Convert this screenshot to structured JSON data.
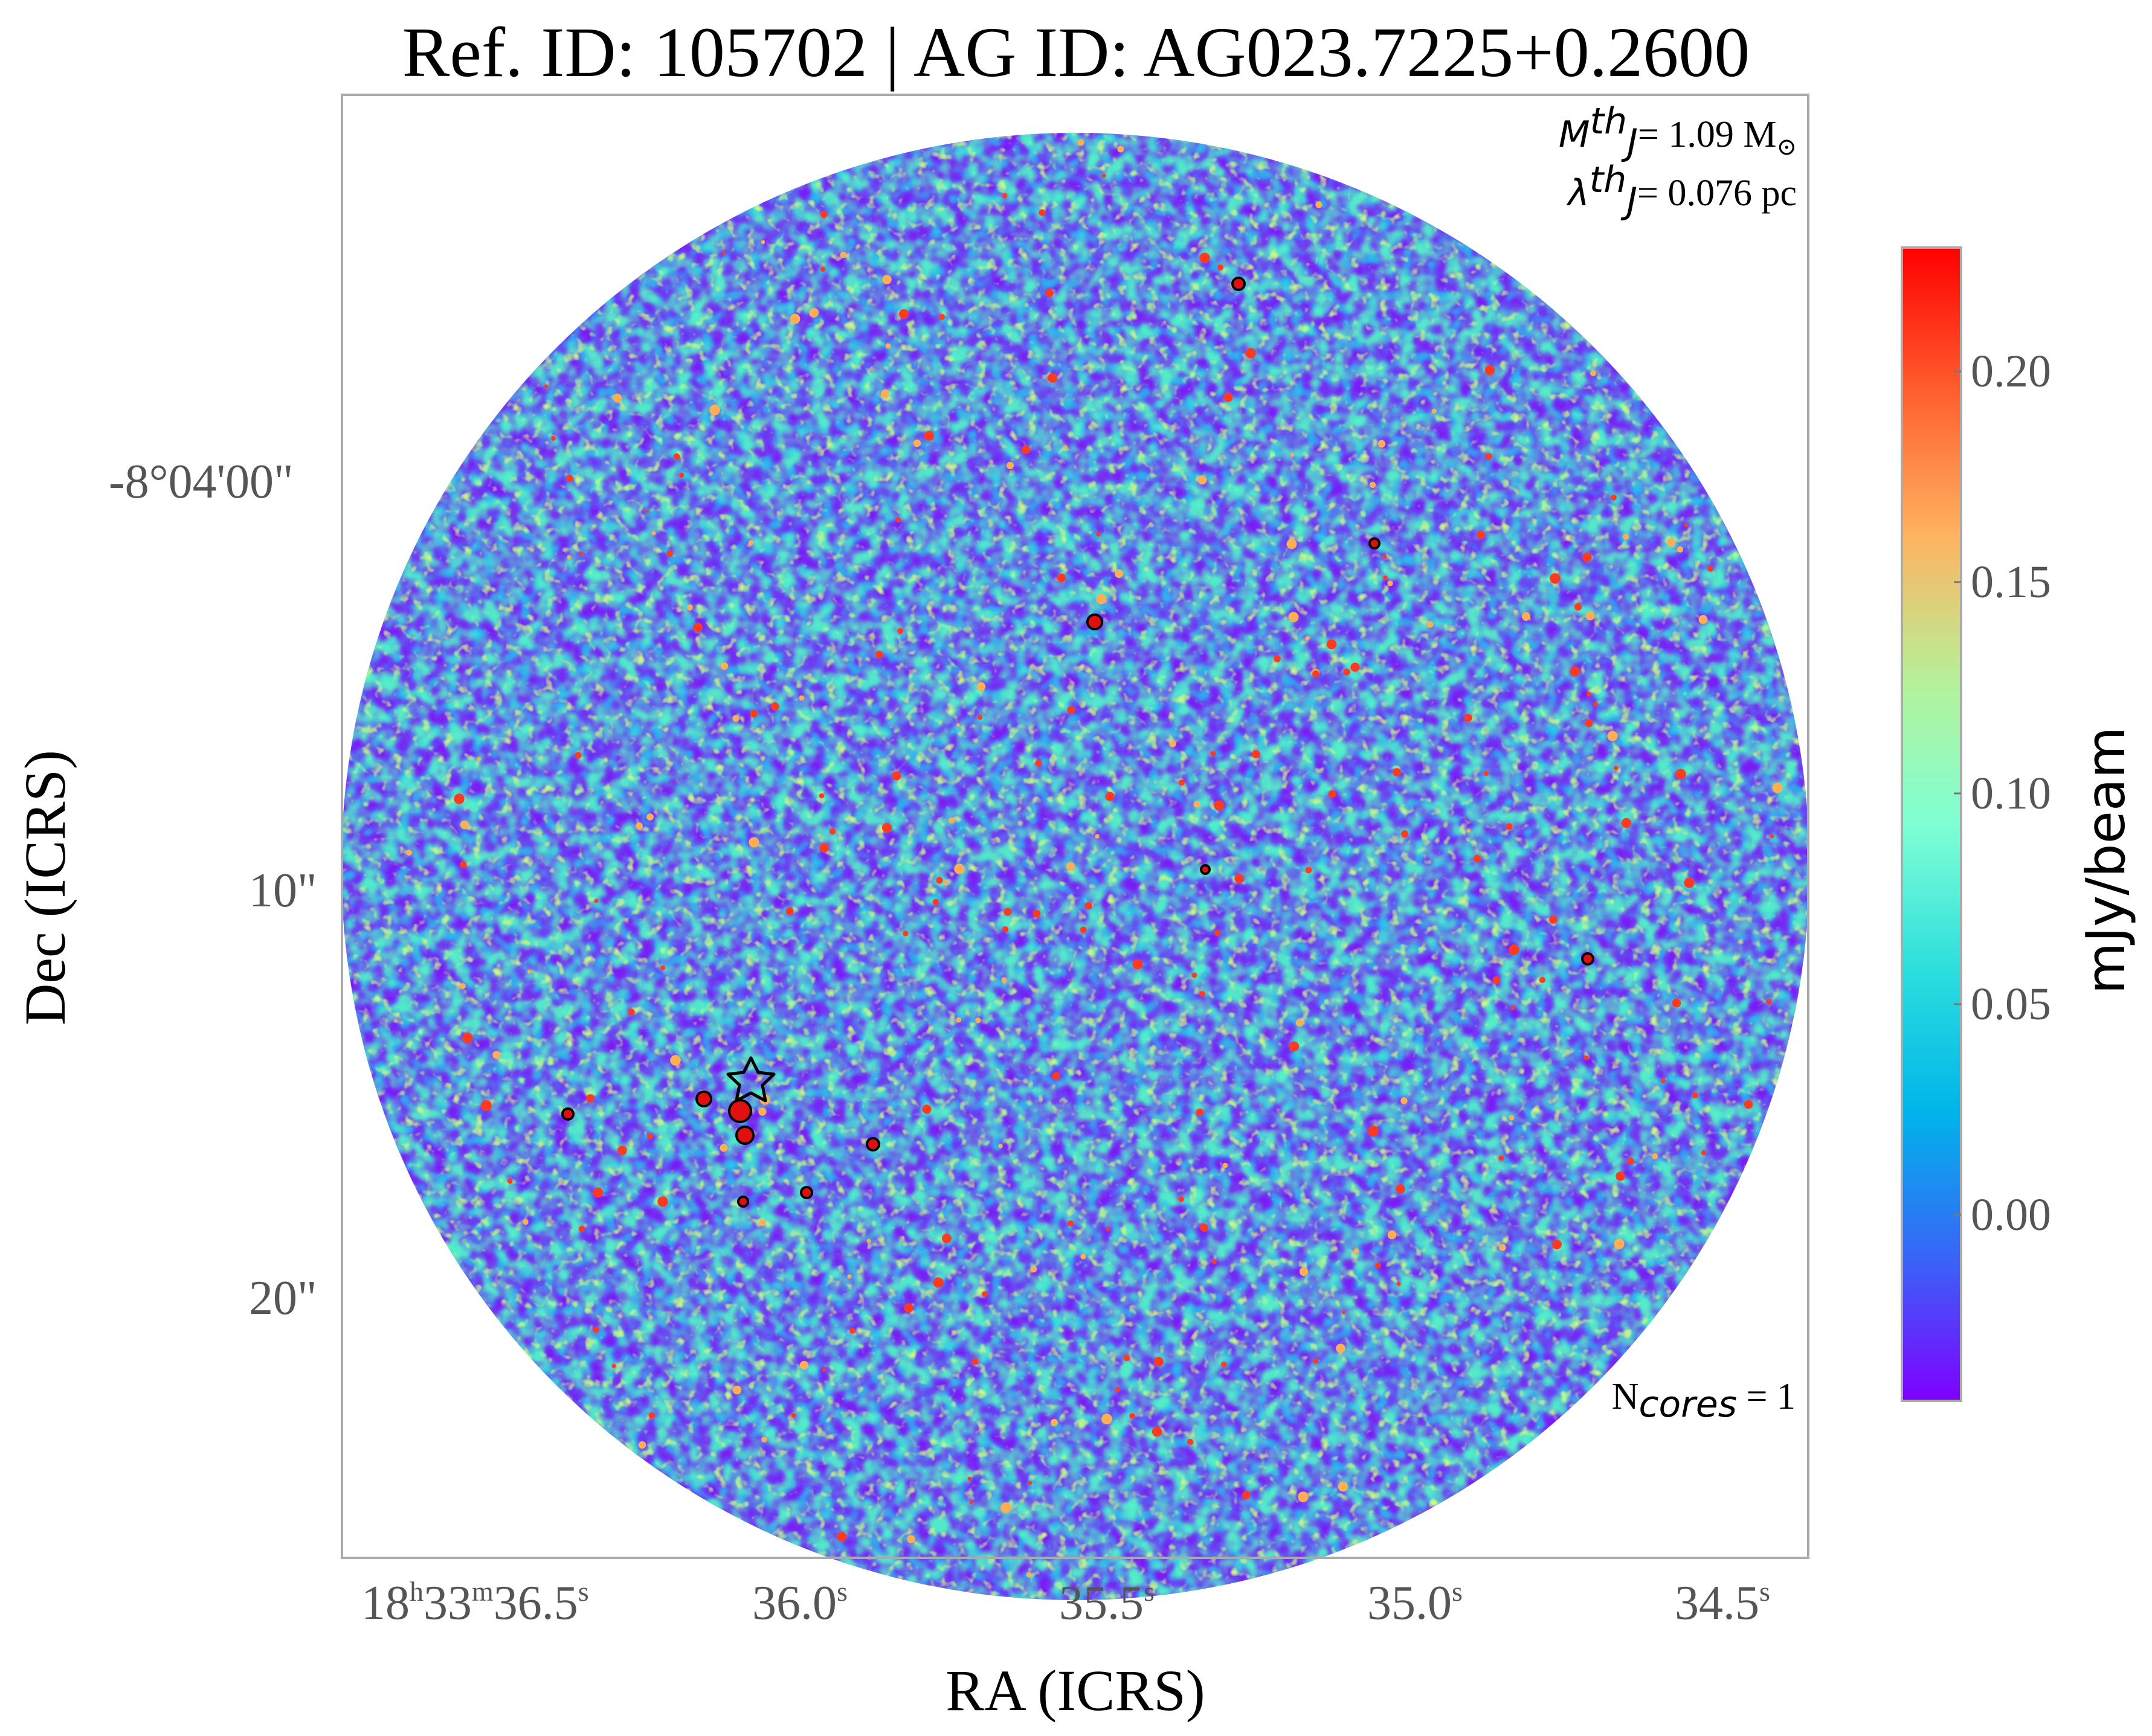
{
  "title": "Ref. ID: 105702 | AG ID: AG023.7225+0.2600",
  "xlabel": "RA (ICRS)",
  "ylabel": "Dec (ICRS)",
  "x_ticks": [
    {
      "h": "18",
      "m": "33",
      "s": "36.5"
    },
    {
      "s": "36.0"
    },
    {
      "s": "35.5"
    },
    {
      "s": "35.0"
    },
    {
      "s": "34.5"
    }
  ],
  "x_tick_units": {
    "h": "h",
    "m": "m",
    "s": "s"
  },
  "y_ticks": [
    "-8°04'00\"",
    "10\"",
    "20\""
  ],
  "colorbar": {
    "label": "mJy/beam",
    "ticks": [
      "0.20",
      "0.15",
      "0.10",
      "0.05",
      "0.00"
    ],
    "colormap": [
      "#7f00ff",
      "#3a62f7",
      "#00b4eb",
      "#2adddd",
      "#7fffd4",
      "#b4f29b",
      "#ffb360",
      "#ff6230",
      "#ff0000"
    ]
  },
  "annotations": {
    "mass_symbol": "M",
    "mass_sup": "th",
    "mass_sub": "J",
    "mass_value": "= 1.09 M",
    "mass_unit_symbol": "⊙",
    "lambda_symbol": "λ",
    "lambda_sup": "th",
    "lambda_sub": "J",
    "lambda_value": "= 0.076 pc",
    "ncores_prefix": "N",
    "ncores_sub": "cores",
    "ncores_value": " = 1"
  },
  "marker_icon": "star-icon"
}
